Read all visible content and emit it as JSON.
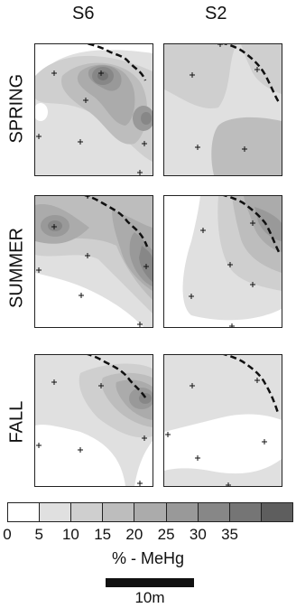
{
  "chart_data": {
    "type": "contour-map-panels",
    "columns": [
      "S6",
      "S2"
    ],
    "rows": [
      "SPRING",
      "SUMMER",
      "FALL"
    ],
    "legend": {
      "title": "% - MeHg",
      "ticks": [
        "0",
        "5",
        "10",
        "15",
        "20",
        "25",
        "30",
        "35"
      ],
      "bins": [
        0,
        5,
        10,
        15,
        20,
        25,
        30,
        35,
        40
      ],
      "colors": [
        "#ffffff",
        "#e0e0e0",
        "#cfcfcf",
        "#bdbdbd",
        "#ababab",
        "#999999",
        "#878787",
        "#757575",
        "#5e5e5e"
      ]
    },
    "scale_bar": {
      "label": "10m"
    },
    "panels": [
      {
        "site": "S6",
        "season": "SPRING",
        "peak_pct": 35
      },
      {
        "site": "S2",
        "season": "SPRING",
        "peak_pct": 15
      },
      {
        "site": "S6",
        "season": "SUMMER",
        "peak_pct": 35
      },
      {
        "site": "S2",
        "season": "SUMMER",
        "peak_pct": 25
      },
      {
        "site": "S6",
        "season": "FALL",
        "peak_pct": 30
      },
      {
        "site": "S2",
        "season": "FALL",
        "peak_pct": 10
      }
    ]
  }
}
